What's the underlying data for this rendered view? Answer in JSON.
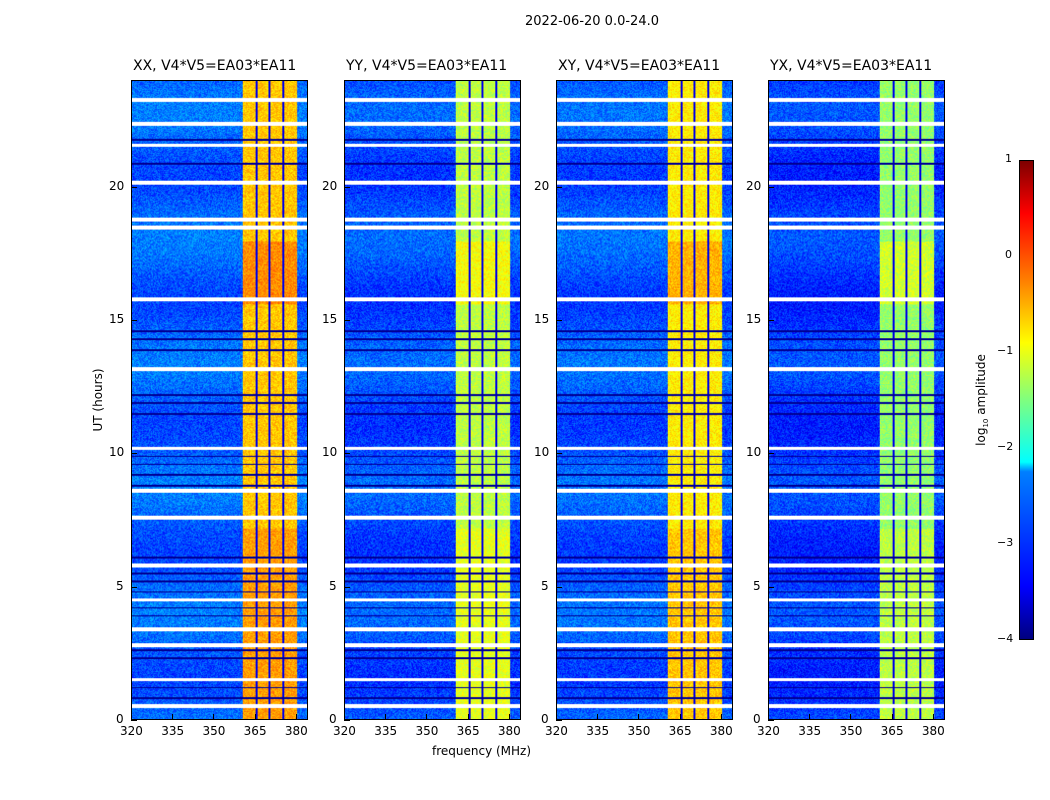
{
  "chart_data": {
    "type": "heatmap",
    "suptitle": "2022-06-20 0.0-24.0",
    "xlabel": "frequency (MHz)",
    "ylabel": "UT (hours)",
    "xlim": [
      320,
      384.4
    ],
    "ylim": [
      0,
      24
    ],
    "xticks": [
      "320",
      "335",
      "350",
      "365",
      "380"
    ],
    "xtick_values": [
      320,
      335,
      350,
      365,
      380
    ],
    "yticks": [
      "0",
      "5",
      "10",
      "15",
      "20"
    ],
    "ytick_values": [
      0,
      5,
      10,
      15,
      20
    ],
    "colorbar": {
      "label": "log10 amplitude",
      "label_main": "log",
      "label_sub": "10",
      "label_rest": " amplitude",
      "ticks": [
        "1",
        "0",
        "−1",
        "−2",
        "−3",
        "−4"
      ],
      "tick_values": [
        1,
        0,
        -1,
        -2,
        -3,
        -4
      ],
      "range": [
        -4,
        1
      ],
      "colormap": "jet"
    },
    "rfi_band_mhz": [
      360.7,
      380.4
    ],
    "rfi_channel_gaps_mhz": [
      365.8,
      370.5,
      375.6
    ],
    "flagged_rows_ut": [
      0.5,
      1.5,
      2.8,
      3.4,
      4.5,
      5.8,
      7.6,
      8.6,
      10.2,
      13.2,
      15.8,
      18.5,
      18.8,
      20.2,
      21.6,
      22.4,
      23.3
    ],
    "dark_rows_ut": [
      0.8,
      1.2,
      2.3,
      2.6,
      3.9,
      4.2,
      4.8,
      5.2,
      5.5,
      6.1,
      8.8,
      9.2,
      9.6,
      9.9,
      11.5,
      11.9,
      12.2,
      13.9,
      14.6,
      14.3,
      20.9,
      21.8
    ],
    "panels": [
      {
        "title": "XX, V4*V5=EA03*EA11",
        "background_level": -2.9,
        "rfi_level": -0.6
      },
      {
        "title": "YY, V4*V5=EA03*EA11",
        "background_level": -3.0,
        "rfi_level": -1.2
      },
      {
        "title": "XY, V4*V5=EA03*EA11",
        "background_level": -2.95,
        "rfi_level": -0.8
      },
      {
        "title": "YX, V4*V5=EA03*EA11",
        "background_level": -3.1,
        "rfi_level": -1.4
      }
    ]
  }
}
